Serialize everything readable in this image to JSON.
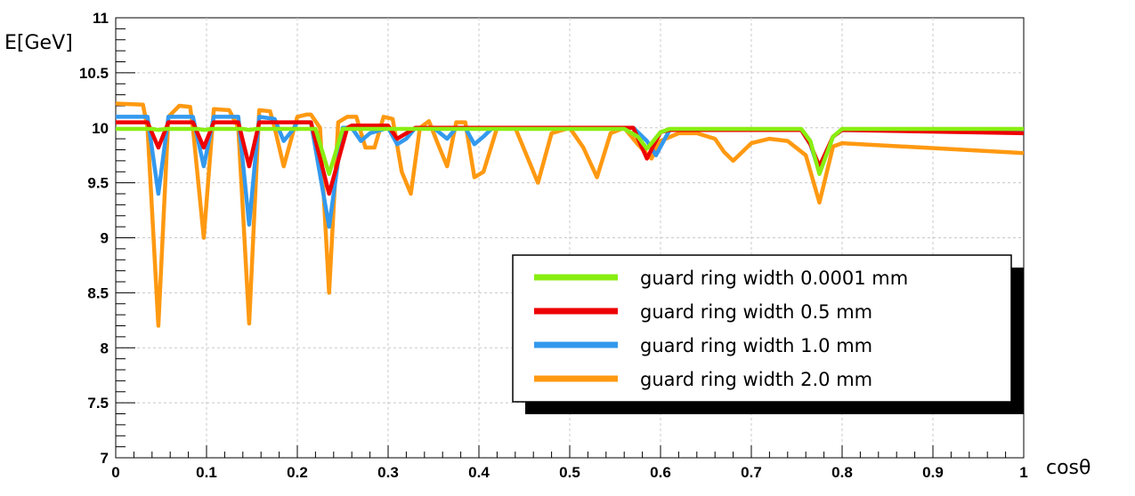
{
  "chart_data": {
    "type": "line",
    "xlabel": "cosθ",
    "ylabel": "E[GeV]",
    "xlim": [
      0,
      1
    ],
    "ylim": [
      7,
      11
    ],
    "x_ticks": [
      "0",
      "0.1",
      "0.2",
      "0.3",
      "0.4",
      "0.5",
      "0.6",
      "0.7",
      "0.8",
      "0.9",
      "1"
    ],
    "y_ticks": [
      "7",
      "7.5",
      "8",
      "8.5",
      "9",
      "9.5",
      "10",
      "10.5",
      "11"
    ],
    "grid": true,
    "legend_position": "bottom-right",
    "series": [
      {
        "name": "guard ring width 0.0001 mm",
        "color": "#88ee11",
        "points": [
          [
            0,
            9.99
          ],
          [
            0.04,
            9.99
          ],
          [
            0.047,
            9.98
          ],
          [
            0.055,
            9.99
          ],
          [
            0.09,
            9.99
          ],
          [
            0.097,
            9.98
          ],
          [
            0.105,
            9.99
          ],
          [
            0.14,
            9.99
          ],
          [
            0.147,
            9.98
          ],
          [
            0.155,
            9.99
          ],
          [
            0.22,
            9.99
          ],
          [
            0.235,
            9.58
          ],
          [
            0.25,
            9.99
          ],
          [
            0.56,
            9.99
          ],
          [
            0.575,
            9.92
          ],
          [
            0.585,
            9.81
          ],
          [
            0.6,
            9.96
          ],
          [
            0.61,
            9.99
          ],
          [
            0.755,
            9.99
          ],
          [
            0.765,
            9.88
          ],
          [
            0.775,
            9.58
          ],
          [
            0.79,
            9.92
          ],
          [
            0.8,
            9.99
          ],
          [
            1,
            9.99
          ]
        ]
      },
      {
        "name": "guard ring width 0.5 mm",
        "color": "#ee0000",
        "points": [
          [
            0,
            10.05
          ],
          [
            0.035,
            10.05
          ],
          [
            0.047,
            9.82
          ],
          [
            0.058,
            10.05
          ],
          [
            0.085,
            10.05
          ],
          [
            0.097,
            9.82
          ],
          [
            0.108,
            10.05
          ],
          [
            0.135,
            10.05
          ],
          [
            0.147,
            9.65
          ],
          [
            0.158,
            10.05
          ],
          [
            0.215,
            10.05
          ],
          [
            0.235,
            9.4
          ],
          [
            0.255,
            10.0
          ],
          [
            0.26,
            10.02
          ],
          [
            0.3,
            10.02
          ],
          [
            0.31,
            9.9
          ],
          [
            0.32,
            9.95
          ],
          [
            0.33,
            10.0
          ],
          [
            0.42,
            10.0
          ],
          [
            0.57,
            10.0
          ],
          [
            0.585,
            9.72
          ],
          [
            0.6,
            9.96
          ],
          [
            0.61,
            9.98
          ],
          [
            0.755,
            9.98
          ],
          [
            0.765,
            9.85
          ],
          [
            0.775,
            9.65
          ],
          [
            0.79,
            9.92
          ],
          [
            0.8,
            9.98
          ],
          [
            1,
            9.95
          ]
        ]
      },
      {
        "name": "guard ring width 1.0 mm",
        "color": "#3399ee",
        "points": [
          [
            0,
            10.1
          ],
          [
            0.035,
            10.1
          ],
          [
            0.047,
            9.4
          ],
          [
            0.058,
            10.1
          ],
          [
            0.085,
            10.1
          ],
          [
            0.097,
            9.65
          ],
          [
            0.108,
            10.1
          ],
          [
            0.135,
            10.1
          ],
          [
            0.147,
            9.12
          ],
          [
            0.158,
            10.1
          ],
          [
            0.175,
            10.08
          ],
          [
            0.185,
            9.88
          ],
          [
            0.195,
            9.98
          ],
          [
            0.2,
            10.05
          ],
          [
            0.215,
            10.05
          ],
          [
            0.235,
            9.1
          ],
          [
            0.25,
            10.0
          ],
          [
            0.26,
            10.0
          ],
          [
            0.27,
            9.88
          ],
          [
            0.28,
            9.95
          ],
          [
            0.3,
            10.0
          ],
          [
            0.31,
            9.85
          ],
          [
            0.32,
            9.9
          ],
          [
            0.33,
            10.0
          ],
          [
            0.35,
            10.0
          ],
          [
            0.365,
            9.9
          ],
          [
            0.375,
            10.0
          ],
          [
            0.385,
            10.0
          ],
          [
            0.395,
            9.85
          ],
          [
            0.405,
            9.92
          ],
          [
            0.415,
            10.0
          ],
          [
            0.57,
            10.0
          ],
          [
            0.585,
            9.88
          ],
          [
            0.595,
            9.75
          ],
          [
            0.61,
            9.98
          ],
          [
            0.755,
            9.98
          ],
          [
            0.765,
            9.85
          ],
          [
            0.775,
            9.6
          ],
          [
            0.79,
            9.92
          ],
          [
            0.8,
            9.98
          ],
          [
            1,
            9.97
          ]
        ]
      },
      {
        "name": "guard ring width 2.0 mm",
        "color": "#ff9911",
        "points": [
          [
            0,
            10.22
          ],
          [
            0.03,
            10.21
          ],
          [
            0.035,
            10.0
          ],
          [
            0.047,
            8.2
          ],
          [
            0.058,
            10.1
          ],
          [
            0.07,
            10.2
          ],
          [
            0.082,
            10.19
          ],
          [
            0.085,
            10.0
          ],
          [
            0.097,
            9.0
          ],
          [
            0.108,
            10.17
          ],
          [
            0.125,
            10.16
          ],
          [
            0.135,
            10.0
          ],
          [
            0.147,
            8.22
          ],
          [
            0.158,
            10.16
          ],
          [
            0.17,
            10.15
          ],
          [
            0.175,
            10.0
          ],
          [
            0.185,
            9.65
          ],
          [
            0.2,
            10.1
          ],
          [
            0.21,
            10.12
          ],
          [
            0.215,
            10.12
          ],
          [
            0.225,
            10.0
          ],
          [
            0.235,
            8.5
          ],
          [
            0.245,
            10.05
          ],
          [
            0.255,
            10.1
          ],
          [
            0.265,
            10.1
          ],
          [
            0.275,
            9.82
          ],
          [
            0.285,
            9.82
          ],
          [
            0.295,
            10.1
          ],
          [
            0.305,
            10.08
          ],
          [
            0.315,
            9.6
          ],
          [
            0.325,
            9.4
          ],
          [
            0.335,
            10.0
          ],
          [
            0.345,
            10.06
          ],
          [
            0.355,
            9.85
          ],
          [
            0.365,
            9.65
          ],
          [
            0.375,
            10.05
          ],
          [
            0.385,
            10.05
          ],
          [
            0.395,
            9.55
          ],
          [
            0.405,
            9.6
          ],
          [
            0.42,
            10.0
          ],
          [
            0.44,
            10.0
          ],
          [
            0.465,
            9.5
          ],
          [
            0.48,
            9.95
          ],
          [
            0.5,
            10.0
          ],
          [
            0.515,
            9.82
          ],
          [
            0.53,
            9.55
          ],
          [
            0.545,
            9.95
          ],
          [
            0.56,
            10.0
          ],
          [
            0.575,
            9.85
          ],
          [
            0.59,
            9.72
          ],
          [
            0.6,
            9.88
          ],
          [
            0.62,
            9.95
          ],
          [
            0.64,
            9.95
          ],
          [
            0.66,
            9.9
          ],
          [
            0.67,
            9.78
          ],
          [
            0.68,
            9.7
          ],
          [
            0.69,
            9.78
          ],
          [
            0.7,
            9.86
          ],
          [
            0.72,
            9.9
          ],
          [
            0.74,
            9.88
          ],
          [
            0.76,
            9.75
          ],
          [
            0.775,
            9.32
          ],
          [
            0.79,
            9.83
          ],
          [
            0.8,
            9.86
          ],
          [
            1,
            9.77
          ]
        ]
      }
    ]
  }
}
